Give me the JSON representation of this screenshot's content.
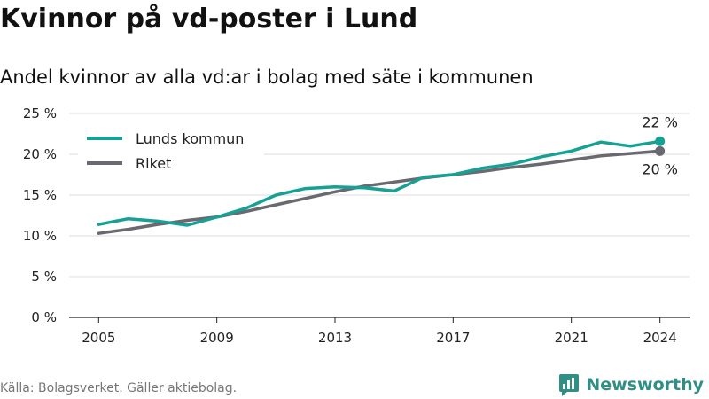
{
  "title": "Kvinnor på vd-poster i Lund",
  "subtitle": "Andel kvinnor av alla vd:ar i bolag med säte i kommunen",
  "source": "Källa: Bolagsverket. Gäller aktiebolag.",
  "brand": {
    "name": "Newsworthy",
    "icon": "newsworthy-logo-icon"
  },
  "colors": {
    "lund": "#17a195",
    "riket": "#6b6970",
    "grid": "#dddddd",
    "axis": "#222222"
  },
  "chart_data": {
    "type": "line",
    "title": "Kvinnor på vd-poster i Lund",
    "subtitle": "Andel kvinnor av alla vd:ar i bolag med säte i kommunen",
    "x": [
      2005,
      2006,
      2007,
      2008,
      2009,
      2010,
      2011,
      2012,
      2013,
      2014,
      2015,
      2016,
      2017,
      2018,
      2019,
      2020,
      2021,
      2022,
      2023,
      2024
    ],
    "x_ticks": [
      2005,
      2009,
      2013,
      2017,
      2021,
      2024
    ],
    "x_tick_labels": [
      "2005",
      "2009",
      "2013",
      "2017",
      "2021",
      "2024"
    ],
    "y_ticks": [
      0,
      5,
      10,
      15,
      20,
      25
    ],
    "y_tick_labels": [
      "0 %",
      "5 %",
      "10 %",
      "15 %",
      "20 %",
      "25 %"
    ],
    "ylim": [
      0,
      25
    ],
    "grid": true,
    "legend": "top-left",
    "series": [
      {
        "name": "Lunds kommun",
        "color": "#17a195",
        "values": [
          11.4,
          12.1,
          11.8,
          11.3,
          12.3,
          13.4,
          15.0,
          15.8,
          16.0,
          15.9,
          15.5,
          17.2,
          17.5,
          18.3,
          18.8,
          19.7,
          20.4,
          21.5,
          21.0,
          21.6
        ],
        "end_label": "22 %"
      },
      {
        "name": "Riket",
        "color": "#6b6970",
        "values": [
          10.3,
          10.8,
          11.4,
          11.9,
          12.3,
          13.0,
          13.8,
          14.6,
          15.4,
          16.1,
          16.6,
          17.1,
          17.5,
          17.9,
          18.4,
          18.8,
          19.3,
          19.8,
          20.1,
          20.4
        ],
        "end_label": "20 %"
      }
    ]
  }
}
